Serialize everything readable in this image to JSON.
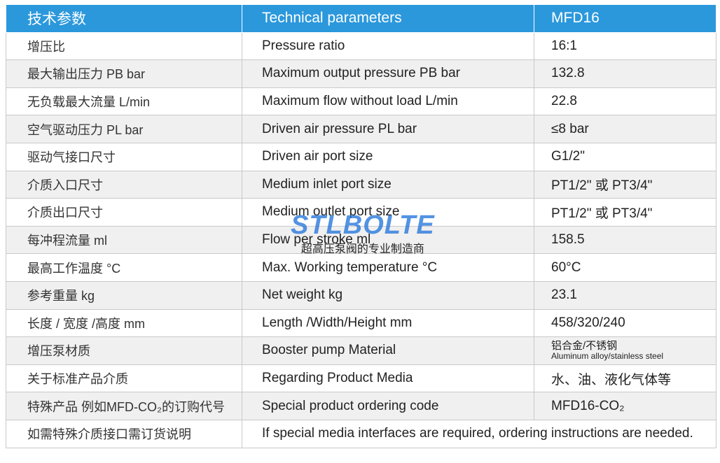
{
  "table": {
    "header": [
      "技术参数",
      "Technical parameters",
      "MFD16"
    ],
    "rows": [
      [
        "增压比",
        "Pressure ratio",
        "16:1"
      ],
      [
        "最大输出压力 PB  bar",
        "Maximum output pressure  PB  bar",
        "132.8"
      ],
      [
        "无负载最大流量  L/min",
        "Maximum flow without load  L/min",
        "22.8"
      ],
      [
        "空气驱动压力 PL  bar",
        "Driven air pressure  PL  bar",
        "≤8 bar"
      ],
      [
        "驱动气接口尺寸",
        "Driven air port size",
        "G1/2\""
      ],
      [
        "介质入口尺寸",
        "Medium inlet port size",
        "PT1/2\" 或 PT3/4\""
      ],
      [
        "介质出口尺寸",
        "Medium outlet port size",
        "PT1/2\" 或 PT3/4\""
      ],
      [
        "每冲程流量  ml",
        "Flow per stroke  ml",
        "158.5"
      ],
      [
        "最高工作温度 °C",
        "Max. Working temperature  °C",
        "60°C"
      ],
      [
        "参考重量 kg",
        "Net weight kg",
        "23.1"
      ],
      [
        "长度 / 宽度 /高度 mm",
        "Length /Width/Height  mm",
        "458/320/240"
      ],
      [
        "增压泵材质",
        "Booster pump Material",
        [
          "铝合金/不锈钢",
          "Aluminum alloy/stainless steel"
        ]
      ],
      [
        "关于标准产品介质",
        "Regarding Product Media",
        "水、油、液化气体等"
      ],
      [
        "特殊产品 例如MFD-CO₂的订购代号",
        "Special product ordering code",
        "MFD16-CO₂"
      ],
      [
        "如需特殊介质接口需订货说明",
        "If special media interfaces are required, ordering instructions are needed."
      ]
    ]
  },
  "watermark": {
    "logo": "STLBOLTE",
    "slogan": "超高压泵阀的专业制造商"
  }
}
